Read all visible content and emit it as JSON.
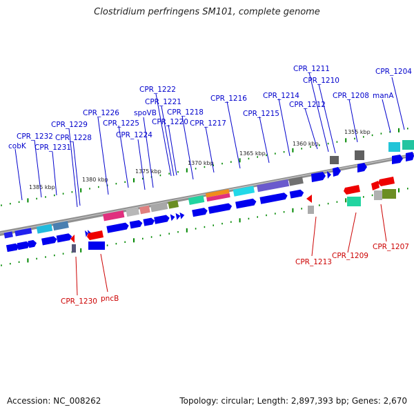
{
  "title": "Clostridium perfringens SM101, complete genome",
  "footer": {
    "accession": "Accession: NC_008262",
    "summary": "Topology: circular; Length: 2,897,393 bp; Genes: 2,670"
  },
  "ruler": [
    "1385 kbp",
    "1380 kbp",
    "1375 kbp",
    "1370 kbp",
    "1365 kbp",
    "1360 kbp",
    "1355 kbp"
  ],
  "forward_labels": [
    "cobK",
    "CPR_1232",
    "CPR_1231",
    "CPR_1229",
    "CPR_1228",
    "CPR_1226",
    "CPR_1225",
    "CPR_1224",
    "spoVB",
    "CPR_1222",
    "CPR_1221",
    "CPR_1220",
    "CPR_1218",
    "CPR_1217",
    "CPR_1216",
    "CPR_1215",
    "CPR_1214",
    "CPR_1212",
    "CPR_1211",
    "CPR_1210",
    "CPR_1208",
    "manA",
    "CPR_1204"
  ],
  "reverse_labels": [
    "CPR_1230",
    "pncB",
    "CPR_1213",
    "CPR_1209",
    "CPR_1207"
  ],
  "colors": {
    "forward_label": "#0000cc",
    "reverse_label": "#cc0000",
    "gene_forward": "#0000ee",
    "gene_reverse": "#ee0000",
    "tick": "#008800",
    "backbone": "#888888"
  }
}
